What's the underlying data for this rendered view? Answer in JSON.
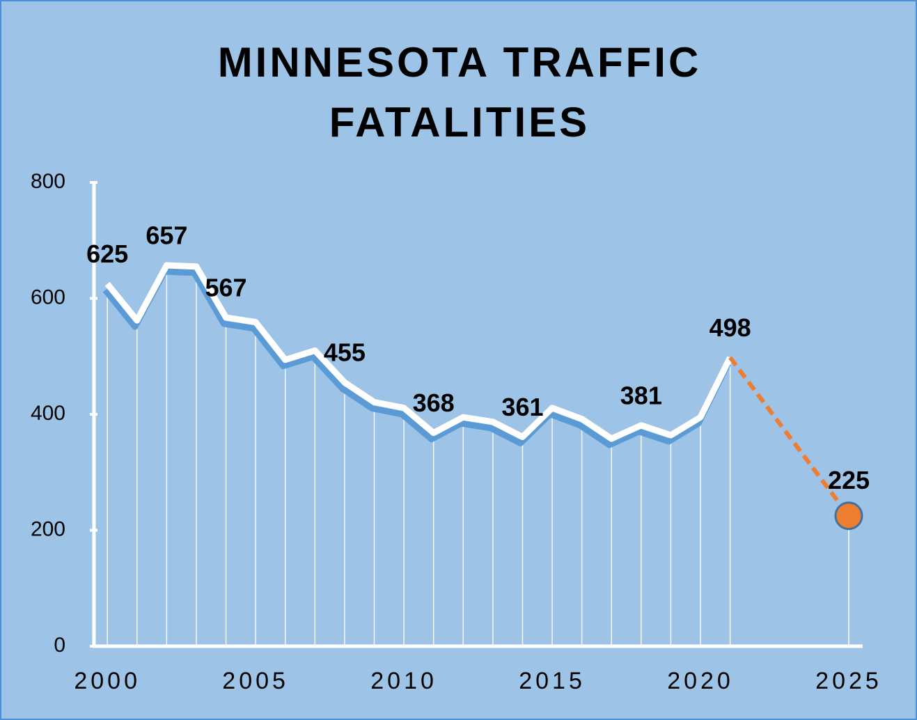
{
  "chart_data": {
    "type": "line",
    "title": "MINNESOTA TRAFFIC FATALITIES",
    "x": [
      2000,
      2001,
      2002,
      2003,
      2004,
      2005,
      2006,
      2007,
      2008,
      2009,
      2010,
      2011,
      2012,
      2013,
      2014,
      2015,
      2016,
      2017,
      2018,
      2019,
      2020,
      2021
    ],
    "series": [
      {
        "color": "#ffffff",
        "values": [
          625,
          562,
          657,
          655,
          567,
          559,
          494,
          510,
          455,
          421,
          411,
          368,
          395,
          387,
          361,
          411,
          392,
          358,
          381,
          364,
          395,
          498
        ],
        "value_labels": [
          "625",
          null,
          "657",
          null,
          "567",
          null,
          null,
          null,
          "455",
          null,
          null,
          "368",
          null,
          null,
          "361",
          null,
          null,
          null,
          "381",
          null,
          null,
          "498"
        ]
      }
    ],
    "target": {
      "x": 2025,
      "value": 225,
      "color": "#ed7d31"
    },
    "xlim": [
      1999.55,
      2025.47
    ],
    "xticks": [
      2000,
      2005,
      2010,
      2015,
      2020,
      2025
    ],
    "ylim": [
      0,
      800
    ],
    "yticks": [
      0,
      200,
      400,
      600,
      800
    ]
  }
}
